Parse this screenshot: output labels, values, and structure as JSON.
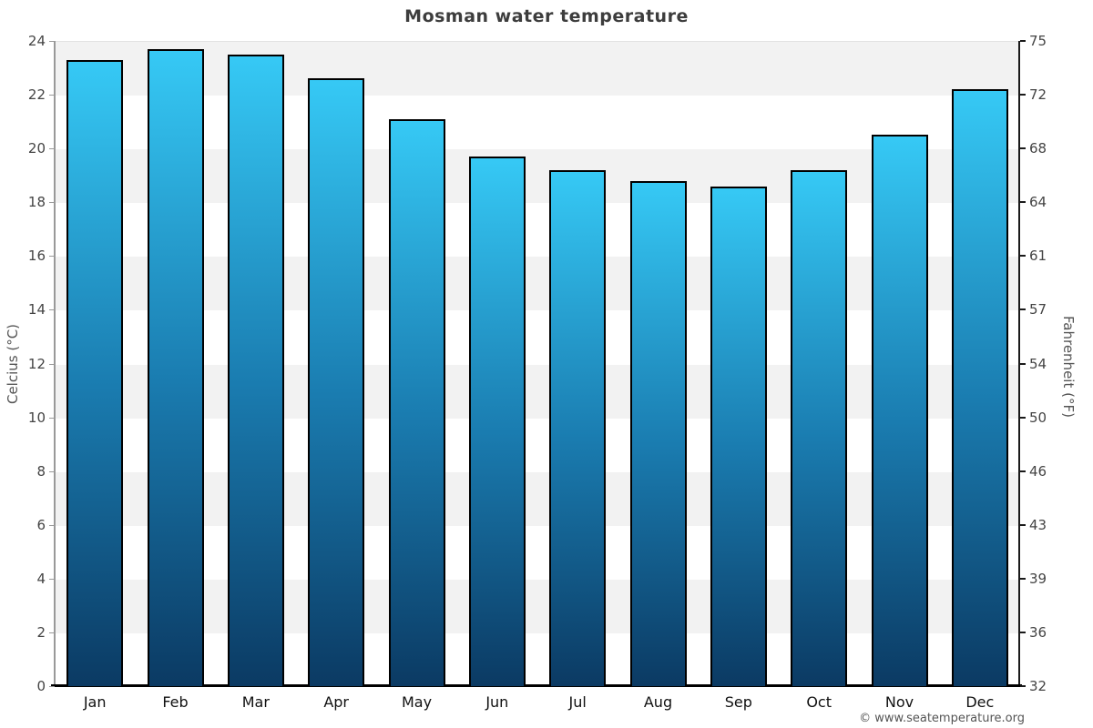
{
  "page": {
    "title": "Mosman water temperature",
    "copyright": "© www.seatemperature.org"
  },
  "chart_data": {
    "type": "bar",
    "title": "Mosman water temperature",
    "categories": [
      "Jan",
      "Feb",
      "Mar",
      "Apr",
      "May",
      "Jun",
      "Jul",
      "Aug",
      "Sep",
      "Oct",
      "Nov",
      "Dec"
    ],
    "values": [
      23.3,
      23.7,
      23.5,
      22.6,
      21.1,
      19.7,
      19.2,
      18.8,
      18.6,
      19.2,
      20.5,
      22.2
    ],
    "unit": "°C",
    "ylabel_left": "Celcius (°C)",
    "ylabel_right": "Fahrenheit (°F)",
    "ylim": [
      0,
      24
    ],
    "yticks_left": [
      0,
      2,
      4,
      6,
      8,
      10,
      12,
      14,
      16,
      18,
      20,
      22,
      24
    ],
    "yticks_right_labels": [
      "32",
      "36",
      "39",
      "43",
      "46",
      "50",
      "54",
      "57",
      "61",
      "64",
      "68",
      "72",
      "75"
    ],
    "grid_bands": true,
    "legend": false,
    "colors": {
      "bar_gradient_top": "#36c9f5",
      "bar_gradient_mid": "#1a7cb0",
      "bar_gradient_bottom": "#0b3a63",
      "bar_border": "#000000",
      "band_shaded": "#f2f2f2",
      "band_plain": "#ffffff",
      "axis_left": "#999999",
      "axis_right": "#1a1a1a",
      "baseline": "#000000",
      "title_text": "#3d3d3d",
      "tick_text": "#444444",
      "month_text": "#111111",
      "axis_label_text": "#555555",
      "copyright_text": "#555555"
    }
  }
}
